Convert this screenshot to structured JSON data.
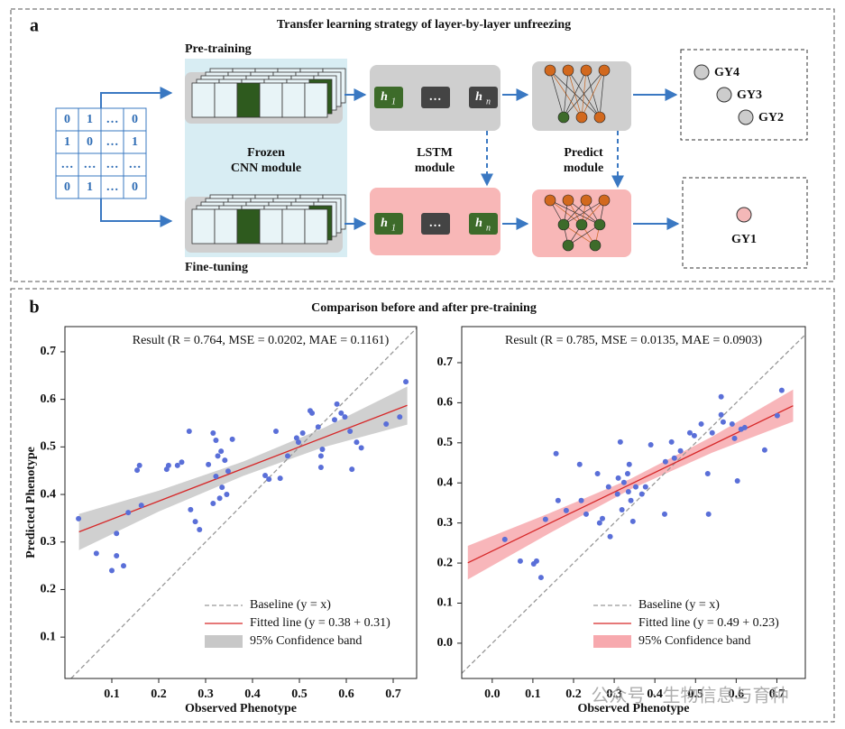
{
  "panel_a": {
    "label": "a",
    "title": "Transfer learning strategy of layer-by-layer unfreezing",
    "pretraining": "Pre-training",
    "finetuning": "Fine-tuning",
    "matrix": [
      [
        "0",
        "1",
        "…",
        "0"
      ],
      [
        "1",
        "0",
        "…",
        "1"
      ],
      [
        "…",
        "…",
        "…",
        "…"
      ],
      [
        "0",
        "1",
        "…",
        "0"
      ]
    ],
    "cnn": [
      "Frozen",
      "CNN module"
    ],
    "lstm": [
      "LSTM",
      "module"
    ],
    "predict": [
      "Predict",
      "module"
    ],
    "lstm_cells": [
      {
        "text": "h",
        "sub": "1"
      },
      {
        "text": "…"
      },
      {
        "text": "h",
        "sub": "n"
      }
    ],
    "outputs_pre": [
      "GY4",
      "GY3",
      "GY2"
    ],
    "outputs_fine": [
      "GY1"
    ]
  },
  "panel_b": {
    "label": "b",
    "title": "Comparison before and after pre-training"
  },
  "watermark": "公众号 · 生物信息与育种",
  "chart_data": [
    {
      "type": "scatter",
      "result": "Result (R = 0.764, MSE = 0.0202, MAE = 0.1161)",
      "x_label": "Observed Phenotype",
      "y_label": "Predicted Phenotype",
      "x": [
        0.029,
        0.067,
        0.1,
        0.11,
        0.11,
        0.125,
        0.135,
        0.154,
        0.159,
        0.163,
        0.217,
        0.221,
        0.24,
        0.249,
        0.265,
        0.268,
        0.278,
        0.287,
        0.306,
        0.316,
        0.316,
        0.322,
        0.322,
        0.326,
        0.333,
        0.335,
        0.341,
        0.345,
        0.348,
        0.357,
        0.33,
        0.427,
        0.435,
        0.45,
        0.459,
        0.475,
        0.494,
        0.498,
        0.507,
        0.523,
        0.527,
        0.54,
        0.546,
        0.546,
        0.549,
        0.575,
        0.58,
        0.589,
        0.597,
        0.608,
        0.612,
        0.622,
        0.632,
        0.685,
        0.714,
        0.727
      ],
      "y": [
        0.349,
        0.276,
        0.24,
        0.271,
        0.318,
        0.25,
        0.362,
        0.451,
        0.461,
        0.377,
        0.453,
        0.461,
        0.461,
        0.468,
        0.533,
        0.368,
        0.343,
        0.326,
        0.463,
        0.529,
        0.381,
        0.514,
        0.438,
        0.481,
        0.491,
        0.415,
        0.472,
        0.4,
        0.449,
        0.516,
        0.392,
        0.44,
        0.432,
        0.533,
        0.434,
        0.481,
        0.519,
        0.51,
        0.529,
        0.576,
        0.571,
        0.542,
        0.457,
        0.481,
        0.495,
        0.557,
        0.59,
        0.571,
        0.563,
        0.533,
        0.453,
        0.51,
        0.498,
        0.548,
        0.563,
        0.637
      ],
      "point_color": "#5a6fd8",
      "baseline": {
        "name": "Baseline (y = x)",
        "color": "#999999"
      },
      "fit": {
        "name": "Fitted line (y = 0.38 + 0.31)",
        "slope": 0.38,
        "intercept": 0.31,
        "color": "#d62728"
      },
      "band": {
        "name": "95% Confidence band",
        "color": "#c8c8c8",
        "x": [
          0.03,
          0.2,
          0.38,
          0.55,
          0.73
        ],
        "lower": [
          0.283,
          0.364,
          0.439,
          0.499,
          0.547
        ],
        "upper": [
          0.359,
          0.408,
          0.469,
          0.539,
          0.627
        ]
      },
      "xlim": [
        0,
        0.75
      ],
      "ylim": [
        0.013,
        0.753
      ],
      "xticks": [
        0.1,
        0.2,
        0.3,
        0.4,
        0.5,
        0.6,
        0.7
      ],
      "yticks": [
        0.1,
        0.2,
        0.3,
        0.4,
        0.5,
        0.6,
        0.7
      ],
      "legend": "lower right"
    },
    {
      "type": "scatter",
      "result": "Result (R = 0.785, MSE = 0.0135, MAE = 0.0903)",
      "x_label": "Observed Phenotype",
      "x": [
        0.031,
        0.069,
        0.102,
        0.109,
        0.12,
        0.131,
        0.157,
        0.162,
        0.182,
        0.215,
        0.219,
        0.231,
        0.259,
        0.264,
        0.271,
        0.286,
        0.29,
        0.308,
        0.31,
        0.315,
        0.319,
        0.324,
        0.333,
        0.335,
        0.337,
        0.341,
        0.346,
        0.353,
        0.368,
        0.377,
        0.39,
        0.424,
        0.426,
        0.441,
        0.448,
        0.463,
        0.486,
        0.497,
        0.514,
        0.53,
        0.532,
        0.541,
        0.563,
        0.563,
        0.568,
        0.59,
        0.596,
        0.603,
        0.612,
        0.621,
        0.67,
        0.701,
        0.712
      ],
      "y": [
        0.259,
        0.205,
        0.198,
        0.205,
        0.164,
        0.309,
        0.473,
        0.356,
        0.331,
        0.446,
        0.356,
        0.322,
        0.423,
        0.3,
        0.311,
        0.39,
        0.266,
        0.372,
        0.412,
        0.502,
        0.333,
        0.401,
        0.423,
        0.378,
        0.446,
        0.356,
        0.304,
        0.39,
        0.372,
        0.39,
        0.495,
        0.322,
        0.453,
        0.502,
        0.462,
        0.48,
        0.525,
        0.518,
        0.547,
        0.423,
        0.322,
        0.525,
        0.615,
        0.57,
        0.552,
        0.547,
        0.511,
        0.405,
        0.534,
        0.538,
        0.482,
        0.568,
        0.631
      ],
      "point_color": "#5a6fd8",
      "baseline": {
        "name": "Baseline (y = x)",
        "color": "#999999"
      },
      "fit": {
        "name": "Fitted line (y = 0.49 + 0.23)",
        "slope": 0.49,
        "intercept": 0.23,
        "color": "#d62728"
      },
      "band": {
        "name": "95% Confidence band",
        "color": "#f7a9ae",
        "x": [
          -0.06,
          0.14,
          0.34,
          0.54,
          0.74
        ],
        "lower": [
          0.159,
          0.274,
          0.384,
          0.475,
          0.553
        ],
        "upper": [
          0.243,
          0.324,
          0.41,
          0.515,
          0.633
        ]
      },
      "xlim": [
        -0.075,
        0.77
      ],
      "ylim": [
        -0.088,
        0.79
      ],
      "xticks": [
        {
          "value": 0,
          "label": "0.0"
        },
        0.1,
        0.2,
        0.3,
        0.4,
        0.5,
        0.6,
        0.7
      ],
      "yticks": [
        {
          "value": 0,
          "label": "0.0"
        },
        0.1,
        0.2,
        0.3,
        0.4,
        0.5,
        0.6,
        0.7
      ],
      "legend": "lower right"
    }
  ]
}
